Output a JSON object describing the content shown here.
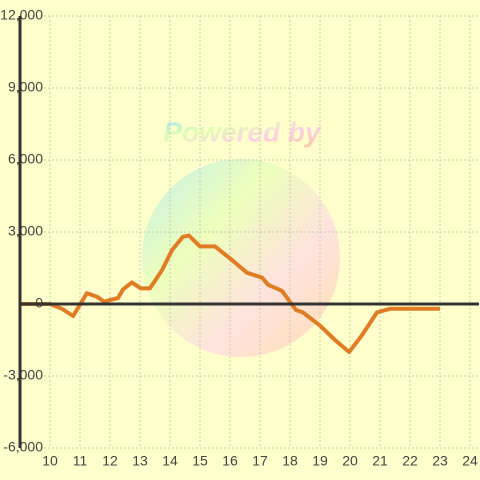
{
  "chart_data": {
    "type": "line",
    "watermark": "Powered by",
    "x": [
      9,
      10,
      10.4,
      10.77,
      11.23,
      11.57,
      11.8,
      12.27,
      12.43,
      12.73,
      13.03,
      13.33,
      13.73,
      14.07,
      14.43,
      14.63,
      15.0,
      15.5,
      16.0,
      16.57,
      17.07,
      17.27,
      17.73,
      18.2,
      18.43,
      19.0,
      19.5,
      19.97,
      20.4,
      20.9,
      21.33,
      23.0
    ],
    "series": [
      {
        "color": "#e07c24",
        "values": [
          0,
          0,
          -200,
          -500,
          450,
          300,
          100,
          250,
          600,
          900,
          650,
          650,
          1400,
          2250,
          2800,
          2850,
          2400,
          2400,
          1900,
          1300,
          1100,
          800,
          550,
          -250,
          -350,
          -900,
          -1500,
          -2000,
          -1300,
          -350,
          -200,
          -200
        ]
      }
    ],
    "xlim": [
      9,
      24.3
    ],
    "xticks": [
      10,
      11,
      12,
      13,
      14,
      15,
      16,
      17,
      18,
      19,
      20,
      21,
      22,
      23,
      24
    ],
    "ylim": [
      -6000,
      12000
    ],
    "yticks": [
      {
        "value": -6000,
        "label": "-6,000"
      },
      {
        "value": -3000,
        "label": "-3,000"
      },
      0,
      {
        "value": 3000,
        "label": "3,000"
      },
      {
        "value": 6000,
        "label": "6,000"
      },
      {
        "value": 9000,
        "label": "9,000"
      },
      {
        "value": 12000,
        "label": "12,000"
      }
    ],
    "grid": true
  }
}
